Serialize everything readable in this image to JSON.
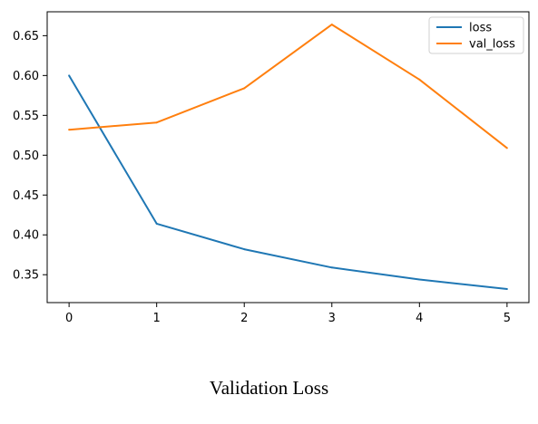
{
  "chart_data": {
    "type": "line",
    "x": [
      0,
      1,
      2,
      3,
      4,
      5
    ],
    "xticks": [
      "0",
      "1",
      "2",
      "3",
      "4",
      "5"
    ],
    "yticks": [
      "0.35",
      "0.40",
      "0.45",
      "0.50",
      "0.55",
      "0.60",
      "0.65"
    ],
    "ylim": [
      0.315,
      0.68
    ],
    "xlim": [
      -0.25,
      5.25
    ],
    "series": [
      {
        "name": "loss",
        "color": "#1f77b4",
        "values": [
          0.6,
          0.414,
          0.382,
          0.359,
          0.344,
          0.332
        ]
      },
      {
        "name": "val_loss",
        "color": "#ff7f0e",
        "values": [
          0.532,
          0.541,
          0.584,
          0.664,
          0.595,
          0.509
        ]
      }
    ],
    "legend_position": "top-right",
    "grid": false
  },
  "caption": "Validation Loss"
}
